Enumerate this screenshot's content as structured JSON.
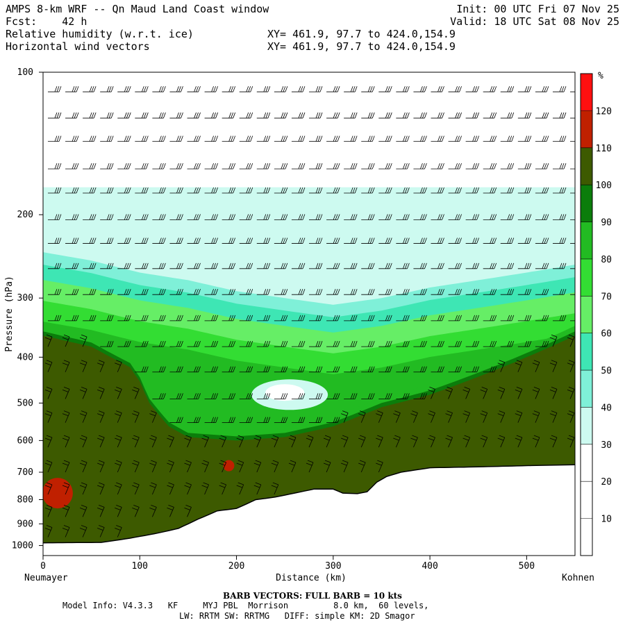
{
  "header": {
    "title": "AMPS 8-km WRF -- Qn Maud Land Coast window",
    "fcst": "Fcst:    42 h",
    "field1": "Relative humidity (w.r.t. ice)",
    "field2": "Horizontal wind vectors",
    "xy1": "XY= 461.9, 97.7 to 424.0,154.9",
    "xy2": "XY= 461.9, 97.7 to 424.0,154.9",
    "init": "Init: 00 UTC Fri 07 Nov 25",
    "valid": "Valid: 18 UTC Sat 08 Nov 25"
  },
  "footer": {
    "barb_note": "BARB VECTORS:  FULL BARB = 10 kts",
    "model_info": "Model Info: V4.3.3   KF     MYJ PBL  Morrison         8.0 km,  60 levels,",
    "physics": "LW: RRTM SW: RRTMG   DIFF: simple KM: 2D Smagor"
  },
  "colors": {
    "c0_30": "#ffffff",
    "c30_40": "#cdfaf0",
    "c40_50": "#7ff0d8",
    "c50_60": "#3ee6b4",
    "c60_70": "#66ee66",
    "c70_80": "#33dd33",
    "c80_90": "#22bb22",
    "c90_100": "#0b7d0b",
    "c100_110": "#3d5a00",
    "c110_120": "#c02000",
    "c120_plus": "#ff1010"
  },
  "chart_data": {
    "type": "heatmap",
    "subtype": "vertical cross-section",
    "xlabel": "Distance (km)",
    "ylabel": "Pressure (hPa)",
    "xlim": [
      0,
      550
    ],
    "ylim": [
      1050,
      100
    ],
    "y_scale": "log",
    "x_ticks": [
      0,
      100,
      200,
      300,
      400,
      500
    ],
    "y_ticks": [
      100,
      200,
      300,
      400,
      500,
      600,
      700,
      800,
      900,
      1000
    ],
    "endpoint_left": "Neumayer",
    "endpoint_right": "Kohnen",
    "colorbar": {
      "unit": "%",
      "levels": [
        10,
        20,
        30,
        40,
        50,
        60,
        70,
        80,
        90,
        100,
        110,
        120
      ]
    },
    "terrain_surface": {
      "x": [
        0,
        60,
        90,
        120,
        140,
        160,
        180,
        200,
        220,
        240,
        260,
        280,
        300,
        310,
        325,
        335,
        345,
        355,
        370,
        400,
        450,
        500,
        550
      ],
      "p": [
        987,
        985,
        965,
        940,
        920,
        880,
        845,
        835,
        800,
        790,
        775,
        760,
        760,
        775,
        777,
        770,
        735,
        715,
        700,
        685,
        682,
        678,
        675
      ]
    },
    "rh_top_of_moist_layer": {
      "x": [
        0,
        50,
        100,
        150,
        200,
        250,
        300,
        350,
        400,
        450,
        500,
        550
      ],
      "p": [
        240,
        250,
        265,
        275,
        290,
        300,
        310,
        300,
        285,
        275,
        265,
        255
      ]
    },
    "saturated_layer_top": {
      "x": [
        0,
        50,
        90,
        100,
        110,
        130,
        150,
        200,
        250,
        300,
        350,
        400,
        450,
        500,
        550
      ],
      "p": [
        360,
        380,
        420,
        450,
        500,
        560,
        590,
        600,
        590,
        560,
        510,
        480,
        440,
        400,
        360
      ]
    },
    "wind_barbs": "full barb = 10 kts"
  }
}
